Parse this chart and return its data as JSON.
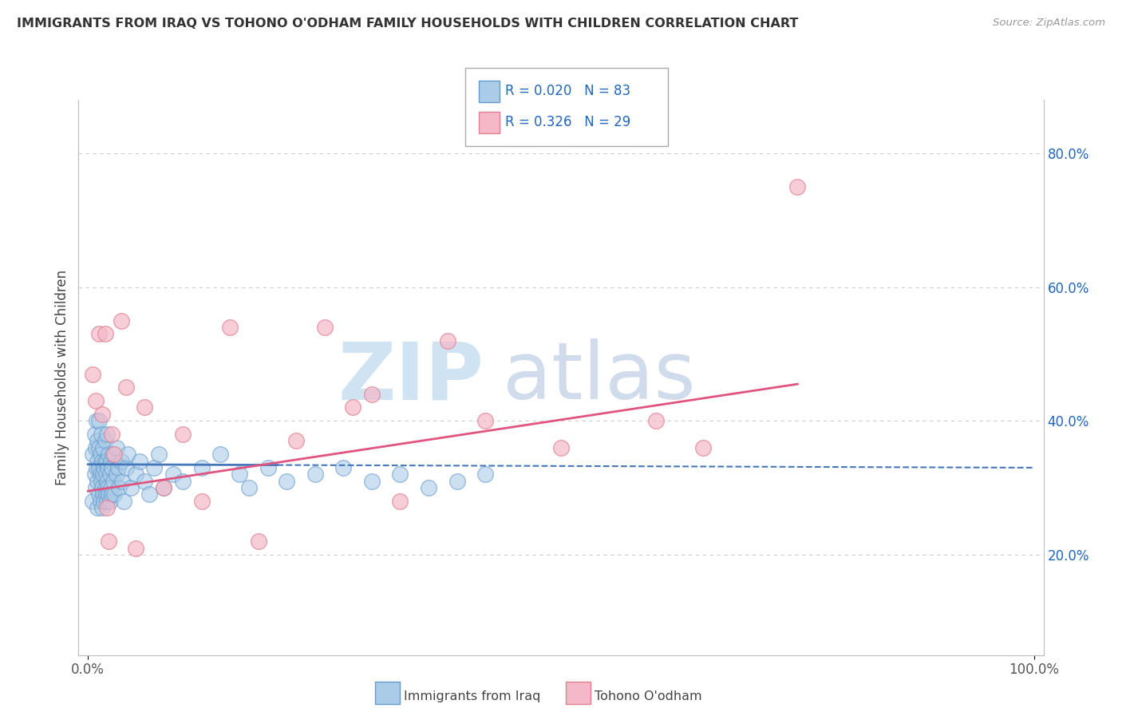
{
  "title": "IMMIGRANTS FROM IRAQ VS TOHONO O'ODHAM FAMILY HOUSEHOLDS WITH CHILDREN CORRELATION CHART",
  "source": "Source: ZipAtlas.com",
  "ylabel": "Family Households with Children",
  "xlim": [
    -0.01,
    1.01
  ],
  "ylim": [
    0.05,
    0.88
  ],
  "yticks": [
    0.2,
    0.4,
    0.6,
    0.8
  ],
  "ytick_labels": [
    "20.0%",
    "40.0%",
    "60.0%",
    "80.0%"
  ],
  "legend_text_r1": "R = 0.020",
  "legend_text_n1": "N = 83",
  "legend_text_r2": "R = 0.326",
  "legend_text_n2": "N = 29",
  "blue_color": "#aacce8",
  "blue_edge_color": "#6699cc",
  "pink_color": "#f4b8c8",
  "pink_edge_color": "#e08090",
  "blue_line_color": "#4477bb",
  "pink_line_color": "#e05580",
  "legend_text_color": "#2266bb",
  "source_color": "#999999",
  "title_color": "#333333",
  "grid_color": "#cccccc",
  "watermark_zip_color": "#c8dff0",
  "watermark_atlas_color": "#c8d5e8",
  "background_color": "#ffffff",
  "blue_scatter_x": [
    0.005,
    0.005,
    0.007,
    0.007,
    0.008,
    0.008,
    0.009,
    0.009,
    0.01,
    0.01,
    0.01,
    0.01,
    0.012,
    0.012,
    0.012,
    0.012,
    0.013,
    0.013,
    0.013,
    0.014,
    0.014,
    0.015,
    0.015,
    0.015,
    0.016,
    0.016,
    0.016,
    0.017,
    0.017,
    0.018,
    0.018,
    0.018,
    0.019,
    0.019,
    0.02,
    0.02,
    0.02,
    0.02,
    0.021,
    0.021,
    0.022,
    0.022,
    0.023,
    0.023,
    0.024,
    0.024,
    0.025,
    0.025,
    0.026,
    0.027,
    0.028,
    0.03,
    0.03,
    0.032,
    0.033,
    0.035,
    0.036,
    0.038,
    0.04,
    0.042,
    0.045,
    0.05,
    0.055,
    0.06,
    0.065,
    0.07,
    0.075,
    0.08,
    0.09,
    0.1,
    0.12,
    0.14,
    0.16,
    0.17,
    0.19,
    0.21,
    0.24,
    0.27,
    0.3,
    0.33,
    0.36,
    0.39,
    0.42
  ],
  "blue_scatter_y": [
    0.35,
    0.28,
    0.32,
    0.38,
    0.3,
    0.36,
    0.33,
    0.4,
    0.27,
    0.31,
    0.34,
    0.37,
    0.29,
    0.33,
    0.36,
    0.4,
    0.28,
    0.32,
    0.35,
    0.31,
    0.38,
    0.27,
    0.3,
    0.34,
    0.29,
    0.32,
    0.36,
    0.28,
    0.33,
    0.3,
    0.34,
    0.37,
    0.29,
    0.32,
    0.28,
    0.31,
    0.34,
    0.38,
    0.3,
    0.33,
    0.29,
    0.35,
    0.28,
    0.32,
    0.3,
    0.34,
    0.29,
    0.33,
    0.35,
    0.31,
    0.29,
    0.32,
    0.36,
    0.33,
    0.3,
    0.34,
    0.31,
    0.28,
    0.33,
    0.35,
    0.3,
    0.32,
    0.34,
    0.31,
    0.29,
    0.33,
    0.35,
    0.3,
    0.32,
    0.31,
    0.33,
    0.35,
    0.32,
    0.3,
    0.33,
    0.31,
    0.32,
    0.33,
    0.31,
    0.32,
    0.3,
    0.31,
    0.32
  ],
  "pink_scatter_x": [
    0.005,
    0.008,
    0.012,
    0.015,
    0.018,
    0.02,
    0.022,
    0.025,
    0.028,
    0.035,
    0.04,
    0.05,
    0.06,
    0.08,
    0.1,
    0.12,
    0.15,
    0.18,
    0.22,
    0.25,
    0.28,
    0.3,
    0.33,
    0.38,
    0.42,
    0.5,
    0.6,
    0.65,
    0.75
  ],
  "pink_scatter_y": [
    0.47,
    0.43,
    0.53,
    0.41,
    0.53,
    0.27,
    0.22,
    0.38,
    0.35,
    0.55,
    0.45,
    0.21,
    0.42,
    0.3,
    0.38,
    0.28,
    0.54,
    0.22,
    0.37,
    0.54,
    0.42,
    0.44,
    0.28,
    0.52,
    0.4,
    0.36,
    0.4,
    0.36,
    0.75
  ],
  "blue_trend_x": [
    0.0,
    1.0
  ],
  "blue_trend_y_start": 0.335,
  "blue_trend_y_end": 0.33,
  "pink_trend_x": [
    0.0,
    1.0
  ],
  "pink_trend_y_start": 0.295,
  "pink_trend_y_end": 0.455
}
